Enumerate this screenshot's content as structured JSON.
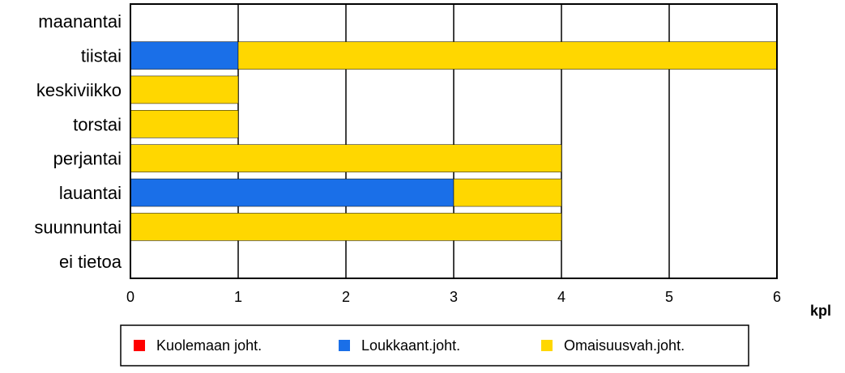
{
  "chart_data": {
    "type": "bar",
    "orientation": "horizontal",
    "stacked": true,
    "categories": [
      "maanantai",
      "tiistai",
      "keskiviikko",
      "torstai",
      "perjantai",
      "lauantai",
      "suunnuntai",
      "ei tietoa"
    ],
    "series": [
      {
        "name": "Kuolemaan joht.",
        "color": "#ff0000",
        "values": [
          0,
          0,
          0,
          0,
          0,
          0,
          0,
          0
        ]
      },
      {
        "name": "Loukkaant.joht.",
        "color": "#1a6fe8",
        "values": [
          0,
          1,
          0,
          0,
          0,
          3,
          0,
          0
        ]
      },
      {
        "name": "Omaisuusvah.joht.",
        "color": "#ffd700",
        "values": [
          0,
          5,
          1,
          1,
          4,
          1,
          4,
          0
        ]
      }
    ],
    "xticks": [
      "0",
      "1",
      "2",
      "3",
      "4",
      "5",
      "6"
    ],
    "xlim": [
      0,
      6
    ],
    "xlabel": "kpl",
    "grid": true,
    "legend_position": "bottom"
  }
}
